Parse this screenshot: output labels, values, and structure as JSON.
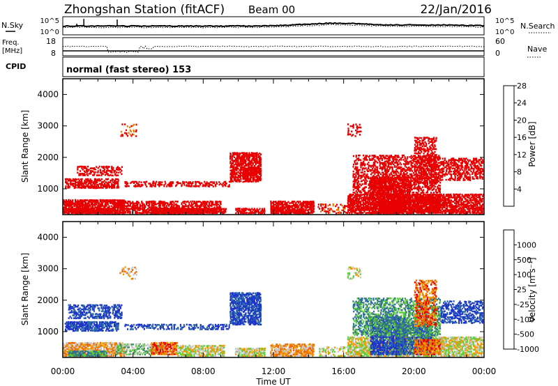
{
  "header": {
    "station": "Zhongshan Station (fitACF)",
    "beam": "Beam 00",
    "date": "22/Jan/2016"
  },
  "status_panels": {
    "nsky_label": "N.Sky",
    "nsearch_label": "N.Search",
    "top_tick": "10^5",
    "bottom_tick": "10^0",
    "freq_label_1": "Freq.",
    "freq_label_2": "[MHz]",
    "freq_ticks": [
      "18",
      "8"
    ],
    "nave_label": "Nave",
    "nave_ticks": [
      "60",
      "0"
    ],
    "cpid_label": "CPID",
    "cpid_value": "normal (fast stereo) 153"
  },
  "chart_data": [
    {
      "type": "heatmap",
      "title": "",
      "quantity": "Power",
      "xlabel": "Time UT",
      "ylabel": "Slant Range [km]",
      "x_ticks": [
        "00:00",
        "04:00",
        "08:00",
        "12:00",
        "16:00",
        "20:00",
        "00:00"
      ],
      "y_ticks": [
        "1000",
        "2000",
        "3000",
        "4000"
      ],
      "colorbar_label": "Power [dB]",
      "colorbar_ticks": [
        "4",
        "8",
        "12",
        "16",
        "20",
        "24",
        "28"
      ],
      "colorbar_colors": [
        "#0000ff",
        "#2250a8",
        "#3d8a5e",
        "#55c63a",
        "#f2cf00",
        "#f07800",
        "#e60000"
      ],
      "blobs": [
        {
          "t0": 0.0,
          "t1": 3.5,
          "r0": 250,
          "r1": 700,
          "density": 0.85,
          "v": 10
        },
        {
          "t0": 0.3,
          "t1": 2.8,
          "r0": 250,
          "r1": 420,
          "density": 0.9,
          "v": 18
        },
        {
          "t0": 0.1,
          "t1": 3.2,
          "r0": 1050,
          "r1": 1350,
          "density": 0.7,
          "v": 8
        },
        {
          "t0": 0.8,
          "t1": 3.4,
          "r0": 1450,
          "r1": 1750,
          "density": 0.5,
          "v": 9
        },
        {
          "t0": 3.0,
          "t1": 9.0,
          "r0": 250,
          "r1": 650,
          "density": 0.7,
          "v": 14
        },
        {
          "t0": 5.0,
          "t1": 9.3,
          "r0": 250,
          "r1": 420,
          "density": 0.9,
          "v": 24
        },
        {
          "t0": 3.5,
          "t1": 9.5,
          "r0": 1100,
          "r1": 1300,
          "density": 0.55,
          "v": 7
        },
        {
          "t0": 9.5,
          "t1": 11.3,
          "r0": 1250,
          "r1": 2200,
          "density": 0.8,
          "v": 16
        },
        {
          "t0": 10.3,
          "t1": 11.0,
          "r0": 1450,
          "r1": 1700,
          "density": 0.9,
          "v": 21
        },
        {
          "t0": 9.8,
          "t1": 11.5,
          "r0": 250,
          "r1": 450,
          "density": 0.8,
          "v": 22
        },
        {
          "t0": 11.8,
          "t1": 14.3,
          "r0": 250,
          "r1": 650,
          "density": 0.8,
          "v": 13
        },
        {
          "t0": 12.3,
          "t1": 13.8,
          "r0": 250,
          "r1": 400,
          "density": 0.9,
          "v": 22
        },
        {
          "t0": 14.5,
          "t1": 16.5,
          "r0": 250,
          "r1": 550,
          "density": 0.35,
          "v": 6
        },
        {
          "t0": 16.2,
          "t1": 24.0,
          "r0": 250,
          "r1": 900,
          "density": 0.8,
          "v": 9
        },
        {
          "t0": 17.5,
          "t1": 19.8,
          "r0": 250,
          "r1": 1400,
          "density": 0.75,
          "v": 14
        },
        {
          "t0": 18.0,
          "t1": 19.5,
          "r0": 300,
          "r1": 600,
          "density": 0.9,
          "v": 23
        },
        {
          "t0": 20.0,
          "t1": 21.5,
          "r0": 300,
          "r1": 800,
          "density": 0.8,
          "v": 20
        },
        {
          "t0": 16.5,
          "t1": 21.5,
          "r0": 900,
          "r1": 2100,
          "density": 0.55,
          "v": 11
        },
        {
          "t0": 20.0,
          "t1": 21.3,
          "r0": 1200,
          "r1": 2700,
          "density": 0.55,
          "v": 14
        },
        {
          "t0": 21.5,
          "t1": 24.0,
          "r0": 1300,
          "r1": 2000,
          "density": 0.55,
          "v": 8
        },
        {
          "t0": 16.2,
          "t1": 17.0,
          "r0": 2700,
          "r1": 3100,
          "density": 0.35,
          "v": 7
        },
        {
          "t0": 3.2,
          "t1": 4.2,
          "r0": 2700,
          "r1": 3100,
          "density": 0.25,
          "v": 6
        }
      ]
    },
    {
      "type": "heatmap",
      "title": "",
      "quantity": "Velocity",
      "xlabel": "Time UT",
      "ylabel": "Slant Range [km]",
      "x_ticks": [
        "00:00",
        "04:00",
        "08:00",
        "12:00",
        "16:00",
        "20:00",
        "00:00"
      ],
      "y_ticks": [
        "1000",
        "2000",
        "3000",
        "4000"
      ],
      "colorbar_label": "Velocity [m s⁻¹]",
      "colorbar_ticks": [
        "1000",
        "500",
        "100",
        "25",
        "-25",
        "-100",
        "-500",
        "-1000"
      ],
      "colorbar_colors": [
        "#1c35c8",
        "#2c6aa8",
        "#3d8a5e",
        "#5ccf3a",
        "#c8c8c8",
        "#f29a00",
        "#f06400",
        "#e40000"
      ],
      "blobs": [
        {
          "t0": 0.0,
          "t1": 3.5,
          "r0": 250,
          "r1": 700,
          "density": 0.85,
          "v": 5
        },
        {
          "t0": 0.3,
          "t1": 2.5,
          "r0": 250,
          "r1": 450,
          "density": 0.9,
          "v": 2
        },
        {
          "t0": 0.1,
          "t1": 3.2,
          "r0": 1050,
          "r1": 1350,
          "density": 0.8,
          "v": 0
        },
        {
          "t0": 0.3,
          "t1": 3.4,
          "r0": 1450,
          "r1": 1900,
          "density": 0.55,
          "v": 0
        },
        {
          "t0": 3.0,
          "t1": 6.0,
          "r0": 300,
          "r1": 650,
          "density": 0.7,
          "v": 3
        },
        {
          "t0": 5.0,
          "t1": 6.5,
          "r0": 300,
          "r1": 700,
          "density": 0.8,
          "v": 6
        },
        {
          "t0": 6.5,
          "t1": 9.2,
          "r0": 250,
          "r1": 600,
          "density": 0.75,
          "v": 4
        },
        {
          "t0": 3.5,
          "t1": 9.5,
          "r0": 1100,
          "r1": 1300,
          "density": 0.5,
          "v": 0
        },
        {
          "t0": 9.5,
          "t1": 11.3,
          "r0": 1250,
          "r1": 2300,
          "density": 0.8,
          "v": 0
        },
        {
          "t0": 9.8,
          "t1": 11.5,
          "r0": 250,
          "r1": 500,
          "density": 0.8,
          "v": 4
        },
        {
          "t0": 11.8,
          "t1": 14.3,
          "r0": 250,
          "r1": 650,
          "density": 0.8,
          "v": 5
        },
        {
          "t0": 14.5,
          "t1": 16.5,
          "r0": 250,
          "r1": 550,
          "density": 0.3,
          "v": 4
        },
        {
          "t0": 16.2,
          "t1": 24.0,
          "r0": 250,
          "r1": 900,
          "density": 0.8,
          "v": 4
        },
        {
          "t0": 17.5,
          "t1": 19.5,
          "r0": 300,
          "r1": 1500,
          "density": 0.75,
          "v": 0
        },
        {
          "t0": 19.0,
          "t1": 21.0,
          "r0": 300,
          "r1": 1300,
          "density": 0.7,
          "v": 1
        },
        {
          "t0": 20.0,
          "t1": 21.5,
          "r0": 300,
          "r1": 800,
          "density": 0.75,
          "v": 6
        },
        {
          "t0": 16.5,
          "t1": 21.5,
          "r0": 900,
          "r1": 2100,
          "density": 0.55,
          "v": 2
        },
        {
          "t0": 20.0,
          "t1": 21.3,
          "r0": 1200,
          "r1": 2700,
          "density": 0.55,
          "v": 6
        },
        {
          "t0": 21.5,
          "t1": 24.0,
          "r0": 1300,
          "r1": 2000,
          "density": 0.55,
          "v": 0
        },
        {
          "t0": 16.2,
          "t1": 17.0,
          "r0": 2700,
          "r1": 3100,
          "density": 0.35,
          "v": 4
        },
        {
          "t0": 3.2,
          "t1": 4.2,
          "r0": 2700,
          "r1": 3100,
          "density": 0.25,
          "v": 5
        }
      ]
    }
  ]
}
